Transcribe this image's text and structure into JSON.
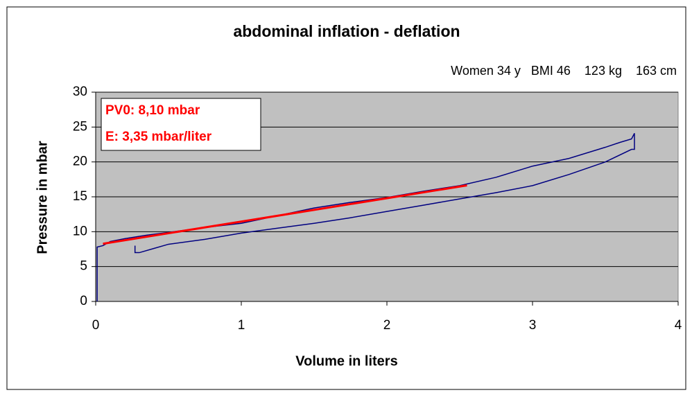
{
  "chart_data": {
    "type": "line",
    "title": "abdominal inflation - deflation",
    "subtitle": "Women 34 y   BMI 46    123 kg    163 cm",
    "x_label": "Volume in liters",
    "y_label": "Pressure in mbar",
    "annotations": [
      "PV0: 8,10 mbar",
      "E: 3,35 mbar/liter"
    ],
    "xlim": [
      0,
      4
    ],
    "xticks": [
      0,
      1,
      2,
      3,
      4
    ],
    "ylim": [
      0,
      30
    ],
    "yticks": [
      0,
      5,
      10,
      15,
      20,
      25,
      30
    ],
    "grid": true,
    "series": [
      {
        "color": "#000080",
        "x": [
          0.01,
          0.01,
          0.05,
          0.1,
          0.2,
          0.35,
          0.5,
          0.75,
          1.0,
          1.25,
          1.5,
          1.75,
          2.0,
          2.25,
          2.5,
          2.75,
          3.0,
          3.25,
          3.5,
          3.6,
          3.68,
          3.7,
          3.7,
          3.68,
          3.5,
          3.25,
          3.0,
          2.75,
          2.5,
          2.25,
          2.0,
          1.75,
          1.5,
          1.25,
          1.0,
          0.75,
          0.5,
          0.4,
          0.3,
          0.27,
          0.27
        ],
        "values": [
          0,
          7.8,
          8.0,
          8.6,
          9.0,
          9.5,
          9.9,
          10.6,
          11.2,
          12.3,
          13.4,
          14.2,
          14.9,
          15.8,
          16.6,
          17.8,
          19.4,
          20.5,
          22.1,
          22.8,
          23.3,
          24.1,
          21.8,
          21.8,
          20.0,
          18.2,
          16.6,
          15.6,
          14.7,
          13.8,
          12.9,
          12.0,
          11.2,
          10.5,
          9.8,
          8.9,
          8.2,
          7.6,
          7.0,
          7.0,
          8.0
        ]
      },
      {
        "color": "#ff0000",
        "x": [
          0.05,
          2.55
        ],
        "values": [
          8.27,
          16.64
        ]
      }
    ]
  }
}
